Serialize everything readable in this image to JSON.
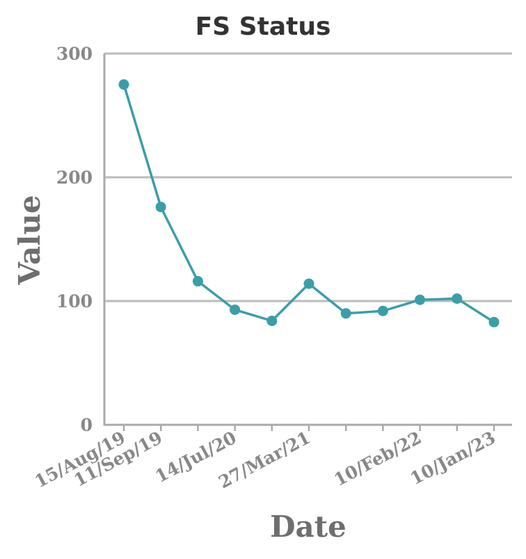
{
  "chart_data": {
    "type": "line",
    "title": "FS Status",
    "xlabel": "Date",
    "ylabel": "Value",
    "ylim": [
      0,
      300
    ],
    "y_ticks": [
      0,
      100,
      200,
      300
    ],
    "grid": "horizontal",
    "x_tick_labels": [
      "15/Aug/19",
      "11/Sep/19",
      "14/Jul/20",
      "27/Mar/21",
      "10/Feb/22",
      "10/Jan/23"
    ],
    "x": [
      "15/Aug/19",
      "11/Sep/19",
      "",
      "14/Jul/20",
      "",
      "27/Mar/21",
      "",
      "",
      "10/Feb/22",
      "",
      "10/Jan/23"
    ],
    "series": [
      {
        "values": [
          275,
          176,
          116,
          93,
          84,
          114,
          90,
          92,
          101,
          102,
          83
        ],
        "color": "#3a9ea8"
      }
    ],
    "colors": {
      "line": "#3a9ea8",
      "grid": "#bbbbbb",
      "axis": "#aaaaaa"
    }
  }
}
